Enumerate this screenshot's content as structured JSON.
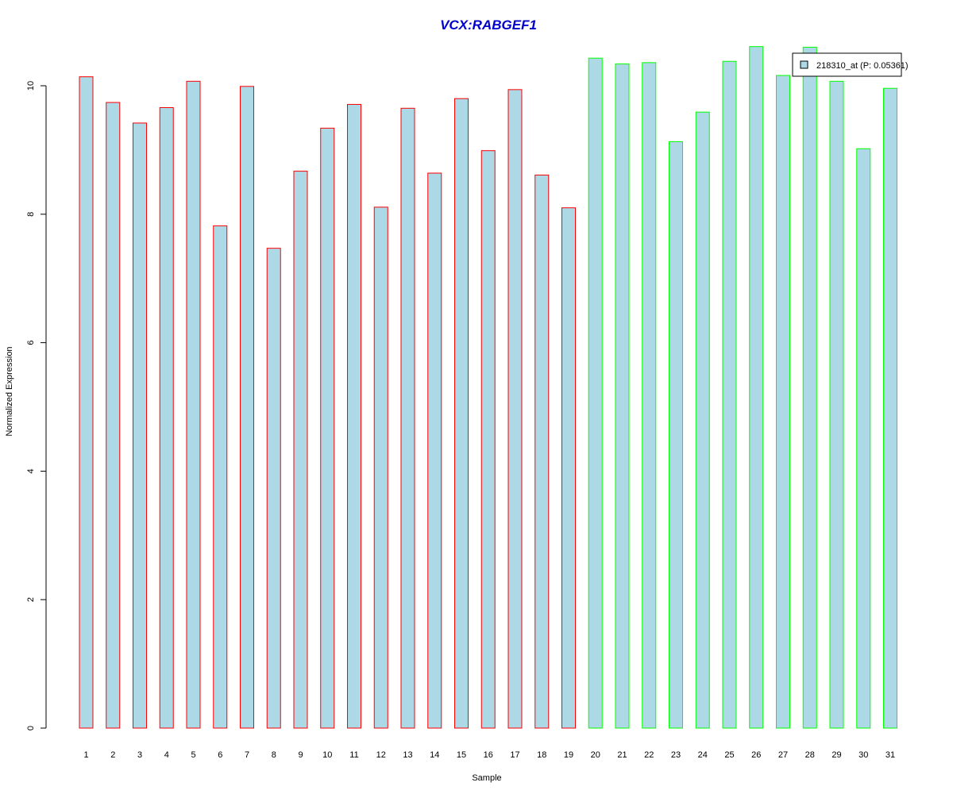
{
  "chart_data": {
    "type": "bar",
    "title": "VCX:RABGEF1",
    "xlabel": "Sample",
    "ylabel": "Normalized Expression",
    "ylim": [
      0,
      10.6
    ],
    "yticks": [
      0,
      2,
      4,
      6,
      8,
      10
    ],
    "categories": [
      "1",
      "2",
      "3",
      "4",
      "5",
      "6",
      "7",
      "8",
      "9",
      "10",
      "11",
      "12",
      "13",
      "14",
      "15",
      "16",
      "17",
      "18",
      "19",
      "20",
      "21",
      "22",
      "23",
      "24",
      "25",
      "26",
      "27",
      "28",
      "29",
      "30",
      "31"
    ],
    "series": [
      {
        "name": "218310_at (P: 0.05361)",
        "values": [
          10.14,
          9.74,
          9.42,
          9.66,
          10.07,
          7.82,
          9.99,
          7.47,
          8.67,
          9.34,
          9.71,
          8.11,
          9.65,
          8.64,
          9.8,
          8.99,
          9.94,
          8.61,
          8.1,
          10.43,
          10.34,
          10.36,
          9.13,
          9.59,
          10.38,
          10.61,
          10.16,
          10.6,
          10.07,
          9.02,
          9.96
        ]
      }
    ],
    "bar_fill": "#add8e6",
    "group_border_colors": {
      "group1": "#ff0000",
      "group2": "#00ff00"
    },
    "group_membership": [
      1,
      1,
      1,
      1,
      1,
      1,
      1,
      1,
      1,
      1,
      1,
      1,
      1,
      1,
      1,
      1,
      1,
      1,
      1,
      2,
      2,
      2,
      2,
      2,
      2,
      2,
      2,
      2,
      2,
      2,
      2
    ],
    "title_color": "#0000cc",
    "legend_position": "top-right",
    "legend_label": "218310_at (P: 0.05361)",
    "grid": false
  }
}
